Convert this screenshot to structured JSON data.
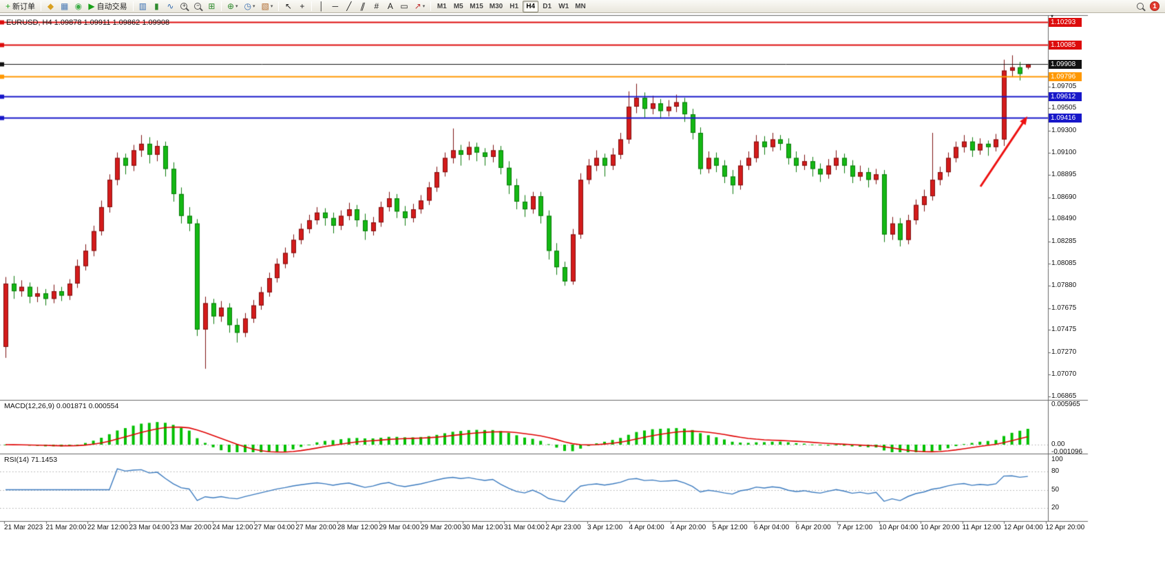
{
  "toolbar": {
    "new_order_label": "新订单",
    "auto_trading_label": "自动交易",
    "timeframes": [
      "M1",
      "M5",
      "M15",
      "M30",
      "H1",
      "H4",
      "D1",
      "W1",
      "MN"
    ],
    "active_timeframe": "H4",
    "notification_count": "1",
    "items": [
      {
        "type": "button",
        "name": "new-order-button",
        "glyph": "+",
        "glyph_color": "#18a018",
        "label": "新订单"
      },
      {
        "type": "sep"
      },
      {
        "type": "icon",
        "name": "market-watch-icon",
        "glyph": "◆",
        "color": "#d9a01f"
      },
      {
        "type": "icon",
        "name": "data-window-icon",
        "glyph": "▦",
        "color": "#4a7ab5"
      },
      {
        "type": "icon",
        "name": "navigator-icon",
        "glyph": "◉",
        "color": "#3fae49"
      },
      {
        "type": "button",
        "name": "auto-trading-button",
        "glyph": "▶",
        "glyph_color": "#18a018",
        "label": "自动交易"
      },
      {
        "type": "sep"
      },
      {
        "type": "icon",
        "name": "bar-chart-icon",
        "glyph": "▥",
        "color": "#356bb0"
      },
      {
        "type": "icon",
        "name": "candlestick-chart-icon",
        "glyph": "▮",
        "color": "#2e8b2e"
      },
      {
        "type": "icon",
        "name": "line-chart-icon",
        "glyph": "∿",
        "color": "#356bb0"
      },
      {
        "type": "magnifier",
        "name": "zoom-in-icon",
        "sign": "+"
      },
      {
        "type": "magnifier",
        "name": "zoom-out-icon",
        "sign": "−"
      },
      {
        "type": "icon",
        "name": "tile-windows-icon",
        "glyph": "⊞",
        "color": "#2e8b2e"
      },
      {
        "type": "sep"
      },
      {
        "type": "icon",
        "name": "indicators-icon",
        "glyph": "⊕",
        "color": "#2e8b2e",
        "caret": true
      },
      {
        "type": "icon",
        "name": "periods-icon",
        "glyph": "◷",
        "color": "#356bb0",
        "caret": true
      },
      {
        "type": "icon",
        "name": "templates-icon",
        "glyph": "▧",
        "color": "#b06a2e",
        "caret": true
      },
      {
        "type": "sep"
      },
      {
        "type": "icon",
        "name": "cursor-icon",
        "glyph": "↖",
        "color": "#222222"
      },
      {
        "type": "icon",
        "name": "crosshair-icon",
        "glyph": "+",
        "color": "#222222"
      },
      {
        "type": "sep"
      },
      {
        "type": "icon",
        "name": "vertical-line-icon",
        "glyph": "│",
        "color": "#222222"
      },
      {
        "type": "icon",
        "name": "horizontal-line-icon",
        "glyph": "─",
        "color": "#222222"
      },
      {
        "type": "icon",
        "name": "trendline-icon",
        "glyph": "╱",
        "color": "#222222"
      },
      {
        "type": "icon",
        "name": "channel-icon",
        "glyph": "∥",
        "color": "#222222",
        "skew": true
      },
      {
        "type": "icon",
        "name": "fibonacci-icon",
        "glyph": "#",
        "color": "#222222"
      },
      {
        "type": "icon",
        "name": "text-icon",
        "glyph": "A",
        "color": "#222222"
      },
      {
        "type": "icon",
        "name": "label-icon",
        "glyph": "▭",
        "color": "#222222"
      },
      {
        "type": "icon",
        "name": "arrows-icon",
        "glyph": "↗",
        "color": "#c03030",
        "caret": true
      },
      {
        "type": "sep"
      },
      {
        "type": "timeframes"
      },
      {
        "type": "spacer"
      },
      {
        "type": "magnifier",
        "name": "search-icon",
        "sign": ""
      },
      {
        "type": "badge",
        "name": "notification-badge"
      }
    ]
  },
  "chart": {
    "title": "EURUSD, H4  1.09878 1.09911 1.09862 1.09908",
    "symbol": "EURUSD",
    "period": "H4"
  },
  "chart_data": {
    "type": "candlestick",
    "symbol": "EURUSD",
    "timeframe": "H4",
    "current_bar": {
      "open": "1.09878",
      "high": "1.09911",
      "low": "1.09862",
      "close": "1.09908"
    },
    "y_range": [
      1.0686,
      1.1032
    ],
    "colors": {
      "up": "#d41b1b",
      "up_border": "#7d0f0f",
      "down": "#14b814",
      "down_border": "#0b7a0b",
      "macd_hist": "#00c000",
      "macd_signal": "#e00000",
      "rsi": "#3a7abf",
      "background": "#ffffff"
    },
    "price_lines": [
      {
        "price": 1.10293,
        "label": "1.10293",
        "color": "#dd0c0c",
        "width": 2
      },
      {
        "price": 1.10085,
        "label": "1.10085",
        "color": "#dd0c0c",
        "width": 2
      },
      {
        "price": 1.09908,
        "label": "1.09908",
        "color": "#111111",
        "width": 1
      },
      {
        "price": 1.09796,
        "label": "1.09796",
        "color": "#ff9800",
        "width": 2
      },
      {
        "price": 1.09612,
        "label": "1.09612",
        "color": "#1717c9",
        "width": 2
      },
      {
        "price": 1.09416,
        "label": "1.09416",
        "color": "#1717c9",
        "width": 2
      }
    ],
    "price_axis_labels": [
      "1.09705",
      "1.09505",
      "1.09300",
      "1.09100",
      "1.08895",
      "1.08690",
      "1.08490",
      "1.08285",
      "1.08085",
      "1.07880",
      "1.07675",
      "1.07475",
      "1.07270",
      "1.07070",
      "1.06865"
    ],
    "time_axis_labels": [
      "21 Mar 2023",
      "21 Mar 20:00",
      "22 Mar 12:00",
      "23 Mar 04:00",
      "23 Mar 20:00",
      "24 Mar 12:00",
      "27 Mar 04:00",
      "27 Mar 20:00",
      "28 Mar 12:00",
      "29 Mar 04:00",
      "29 Mar 20:00",
      "30 Mar 12:00",
      "31 Mar 04:00",
      "2 Apr 23:00",
      "3 Apr 12:00",
      "4 Apr 04:00",
      "4 Apr 20:00",
      "5 Apr 12:00",
      "6 Apr 04:00",
      "6 Apr 20:00",
      "7 Apr 12:00",
      "10 Apr 04:00",
      "10 Apr 20:00",
      "11 Apr 12:00",
      "12 Apr 04:00",
      "12 Apr 20:00"
    ],
    "indicators": [
      {
        "name": "MACD",
        "label": "MACD(12,26,9) 0.001871 0.000554",
        "params": [
          12,
          26,
          9
        ],
        "values": [
          "0.001871",
          "0.000554"
        ],
        "axis_labels": [
          "0.005965",
          "0.00",
          "-0.001096"
        ]
      },
      {
        "name": "RSI",
        "label": "RSI(14) 71.1453",
        "period": 14,
        "value": "71.1453",
        "axis_labels": [
          "100",
          "80",
          "50",
          "20"
        ],
        "levels": [
          80,
          50,
          20
        ]
      }
    ],
    "annotation_arrow": {
      "from": [
        1424,
        252
      ],
      "to": [
        1492,
        150
      ],
      "color": "#ee1111"
    },
    "candles": [
      [
        1.0732,
        1.0796,
        1.0722,
        1.079
      ],
      [
        1.079,
        1.0797,
        1.0776,
        1.0783
      ],
      [
        1.0783,
        1.0793,
        1.0778,
        1.0787
      ],
      [
        1.0787,
        1.0791,
        1.0772,
        1.0778
      ],
      [
        1.0778,
        1.0787,
        1.0773,
        1.0781
      ],
      [
        1.0781,
        1.0785,
        1.077,
        1.0776
      ],
      [
        1.0776,
        1.0789,
        1.0772,
        1.0783
      ],
      [
        1.0783,
        1.0787,
        1.0774,
        1.0779
      ],
      [
        1.0779,
        1.0794,
        1.0775,
        1.079
      ],
      [
        1.079,
        1.0812,
        1.0786,
        1.0806
      ],
      [
        1.0806,
        1.0826,
        1.0802,
        1.082
      ],
      [
        1.082,
        1.0843,
        1.0815,
        1.0838
      ],
      [
        1.0838,
        1.0866,
        1.0834,
        1.086
      ],
      [
        1.086,
        1.089,
        1.0855,
        1.0885
      ],
      [
        1.0885,
        1.091,
        1.088,
        1.0905
      ],
      [
        1.0905,
        1.0909,
        1.089,
        1.0898
      ],
      [
        1.0898,
        1.0917,
        1.0893,
        1.0912
      ],
      [
        1.0912,
        1.0926,
        1.0906,
        1.0918
      ],
      [
        1.0918,
        1.0924,
        1.09,
        1.0908
      ],
      [
        1.0908,
        1.0921,
        1.0902,
        1.0916
      ],
      [
        1.0916,
        1.092,
        1.0888,
        1.0895
      ],
      [
        1.0895,
        1.0901,
        1.0865,
        1.0872
      ],
      [
        1.0872,
        1.0878,
        1.0845,
        1.0852
      ],
      [
        1.0852,
        1.086,
        1.0838,
        1.0845
      ],
      [
        1.0845,
        1.0849,
        1.0742,
        1.0748
      ],
      [
        1.0748,
        1.0778,
        1.0712,
        1.0772
      ],
      [
        1.0772,
        1.0776,
        1.0753,
        1.076
      ],
      [
        1.076,
        1.0774,
        1.0755,
        1.0768
      ],
      [
        1.0768,
        1.0772,
        1.0745,
        1.0752
      ],
      [
        1.0752,
        1.0758,
        1.0736,
        1.0745
      ],
      [
        1.0745,
        1.0763,
        1.0741,
        1.0758
      ],
      [
        1.0758,
        1.0775,
        1.0754,
        1.077
      ],
      [
        1.077,
        1.0787,
        1.0766,
        1.0782
      ],
      [
        1.0782,
        1.08,
        1.0778,
        1.0795
      ],
      [
        1.0795,
        1.0813,
        1.0791,
        1.0808
      ],
      [
        1.0808,
        1.0823,
        1.0804,
        1.0818
      ],
      [
        1.0818,
        1.0835,
        1.0814,
        1.083
      ],
      [
        1.083,
        1.0845,
        1.0826,
        1.084
      ],
      [
        1.084,
        1.0853,
        1.0836,
        1.0848
      ],
      [
        1.0848,
        1.086,
        1.0844,
        1.0855
      ],
      [
        1.0855,
        1.0859,
        1.0843,
        1.085
      ],
      [
        1.085,
        1.0855,
        1.0836,
        1.0843
      ],
      [
        1.0843,
        1.0857,
        1.0839,
        1.0852
      ],
      [
        1.0852,
        1.0864,
        1.0848,
        1.0858
      ],
      [
        1.0858,
        1.0862,
        1.0842,
        1.0848
      ],
      [
        1.0848,
        1.0854,
        1.083,
        1.0838
      ],
      [
        1.0838,
        1.0851,
        1.0834,
        1.0846
      ],
      [
        1.0846,
        1.0865,
        1.0842,
        1.086
      ],
      [
        1.086,
        1.0874,
        1.0856,
        1.0868
      ],
      [
        1.0868,
        1.0872,
        1.085,
        1.0856
      ],
      [
        1.0856,
        1.0861,
        1.0843,
        1.085
      ],
      [
        1.085,
        1.0863,
        1.0846,
        1.0858
      ],
      [
        1.0858,
        1.0871,
        1.0854,
        1.0866
      ],
      [
        1.0866,
        1.0883,
        1.0862,
        1.0878
      ],
      [
        1.0878,
        1.0897,
        1.0874,
        1.0892
      ],
      [
        1.0892,
        1.091,
        1.0888,
        1.0905
      ],
      [
        1.0905,
        1.0932,
        1.09,
        1.0912
      ],
      [
        1.0912,
        1.0917,
        1.0898,
        1.0908
      ],
      [
        1.0908,
        1.092,
        1.0903,
        1.0915
      ],
      [
        1.0915,
        1.0919,
        1.0902,
        1.091
      ],
      [
        1.091,
        1.0914,
        1.0898,
        1.0906
      ],
      [
        1.0906,
        1.0917,
        1.0901,
        1.0912
      ],
      [
        1.0912,
        1.0916,
        1.089,
        1.0896
      ],
      [
        1.0896,
        1.0902,
        1.0872,
        1.088
      ],
      [
        1.088,
        1.0886,
        1.0858,
        1.0865
      ],
      [
        1.0865,
        1.0871,
        1.0851,
        1.0858
      ],
      [
        1.0858,
        1.0874,
        1.0854,
        1.087
      ],
      [
        1.087,
        1.0874,
        1.0845,
        1.0852
      ],
      [
        1.0852,
        1.0857,
        1.0812,
        1.082
      ],
      [
        1.082,
        1.0827,
        1.0798,
        1.0805
      ],
      [
        1.0805,
        1.081,
        1.0788,
        1.0792
      ],
      [
        1.0792,
        1.084,
        1.0789,
        1.0835
      ],
      [
        1.0835,
        1.0891,
        1.0831,
        1.0885
      ],
      [
        1.0885,
        1.0904,
        1.0881,
        1.0898
      ],
      [
        1.0898,
        1.0912,
        1.0893,
        1.0905
      ],
      [
        1.0905,
        1.0909,
        1.0888,
        1.0898
      ],
      [
        1.0898,
        1.0914,
        1.0894,
        1.0908
      ],
      [
        1.0908,
        1.0928,
        1.0904,
        1.0922
      ],
      [
        1.0922,
        1.0966,
        1.0918,
        1.0952
      ],
      [
        1.0952,
        1.0973,
        1.0946,
        1.096
      ],
      [
        1.096,
        1.0965,
        1.0942,
        1.095
      ],
      [
        1.095,
        1.0962,
        1.0945,
        1.0955
      ],
      [
        1.0955,
        1.0959,
        1.0941,
        1.0948
      ],
      [
        1.0948,
        1.0958,
        1.0943,
        1.0952
      ],
      [
        1.0952,
        1.0963,
        1.0947,
        1.0956
      ],
      [
        1.0956,
        1.096,
        1.0938,
        1.0945
      ],
      [
        1.0945,
        1.095,
        1.0922,
        1.0928
      ],
      [
        1.0928,
        1.0933,
        1.089,
        1.0895
      ],
      [
        1.0895,
        1.0911,
        1.0891,
        1.0905
      ],
      [
        1.0905,
        1.091,
        1.0892,
        1.0898
      ],
      [
        1.0898,
        1.0903,
        1.0882,
        1.0888
      ],
      [
        1.0888,
        1.0894,
        1.0872,
        1.088
      ],
      [
        1.088,
        1.0903,
        1.0876,
        1.0898
      ],
      [
        1.0898,
        1.0911,
        1.0894,
        1.0905
      ],
      [
        1.0905,
        1.0926,
        1.0901,
        1.092
      ],
      [
        1.092,
        1.0925,
        1.0908,
        1.0915
      ],
      [
        1.0915,
        1.0928,
        1.0911,
        1.0922
      ],
      [
        1.0922,
        1.0926,
        1.0912,
        1.0918
      ],
      [
        1.0918,
        1.0923,
        1.0899,
        1.0905
      ],
      [
        1.0905,
        1.0911,
        1.0892,
        1.0898
      ],
      [
        1.0898,
        1.0908,
        1.0894,
        1.0902
      ],
      [
        1.0902,
        1.0906,
        1.0888,
        1.0895
      ],
      [
        1.0895,
        1.09,
        1.0883,
        1.089
      ],
      [
        1.089,
        1.0904,
        1.0886,
        1.0898
      ],
      [
        1.0898,
        1.0912,
        1.0894,
        1.0905
      ],
      [
        1.0905,
        1.0909,
        1.0891,
        1.0898
      ],
      [
        1.0898,
        1.0903,
        1.0882,
        1.0888
      ],
      [
        1.0888,
        1.0898,
        1.0884,
        1.0892
      ],
      [
        1.0892,
        1.0896,
        1.0878,
        1.0885
      ],
      [
        1.0885,
        1.0895,
        1.0881,
        1.089
      ],
      [
        1.089,
        1.0894,
        1.0828,
        1.0835
      ],
      [
        1.0835,
        1.0851,
        1.083,
        1.0845
      ],
      [
        1.0845,
        1.085,
        1.0824,
        1.083
      ],
      [
        1.083,
        1.0853,
        1.0826,
        1.0848
      ],
      [
        1.0848,
        1.0867,
        1.0844,
        1.0862
      ],
      [
        1.0862,
        1.0876,
        1.0856,
        1.087
      ],
      [
        1.087,
        1.0928,
        1.0866,
        1.0885
      ],
      [
        1.0885,
        1.0897,
        1.088,
        1.0892
      ],
      [
        1.0892,
        1.091,
        1.0888,
        1.0905
      ],
      [
        1.0905,
        1.092,
        1.0901,
        1.0915
      ],
      [
        1.0915,
        1.0926,
        1.091,
        1.092
      ],
      [
        1.092,
        1.0924,
        1.0906,
        1.0912
      ],
      [
        1.0912,
        1.0923,
        1.0908,
        1.0918
      ],
      [
        1.0918,
        1.0921,
        1.0907,
        1.0915
      ],
      [
        1.0915,
        1.0927,
        1.0911,
        1.0922
      ],
      [
        1.0922,
        1.0995,
        1.0916,
        1.0985
      ],
      [
        1.0985,
        1.0999,
        1.0979,
        1.0988
      ],
      [
        1.0988,
        1.0993,
        1.0976,
        1.0982
      ],
      [
        1.09878,
        1.09911,
        1.09862,
        1.09908
      ]
    ]
  }
}
